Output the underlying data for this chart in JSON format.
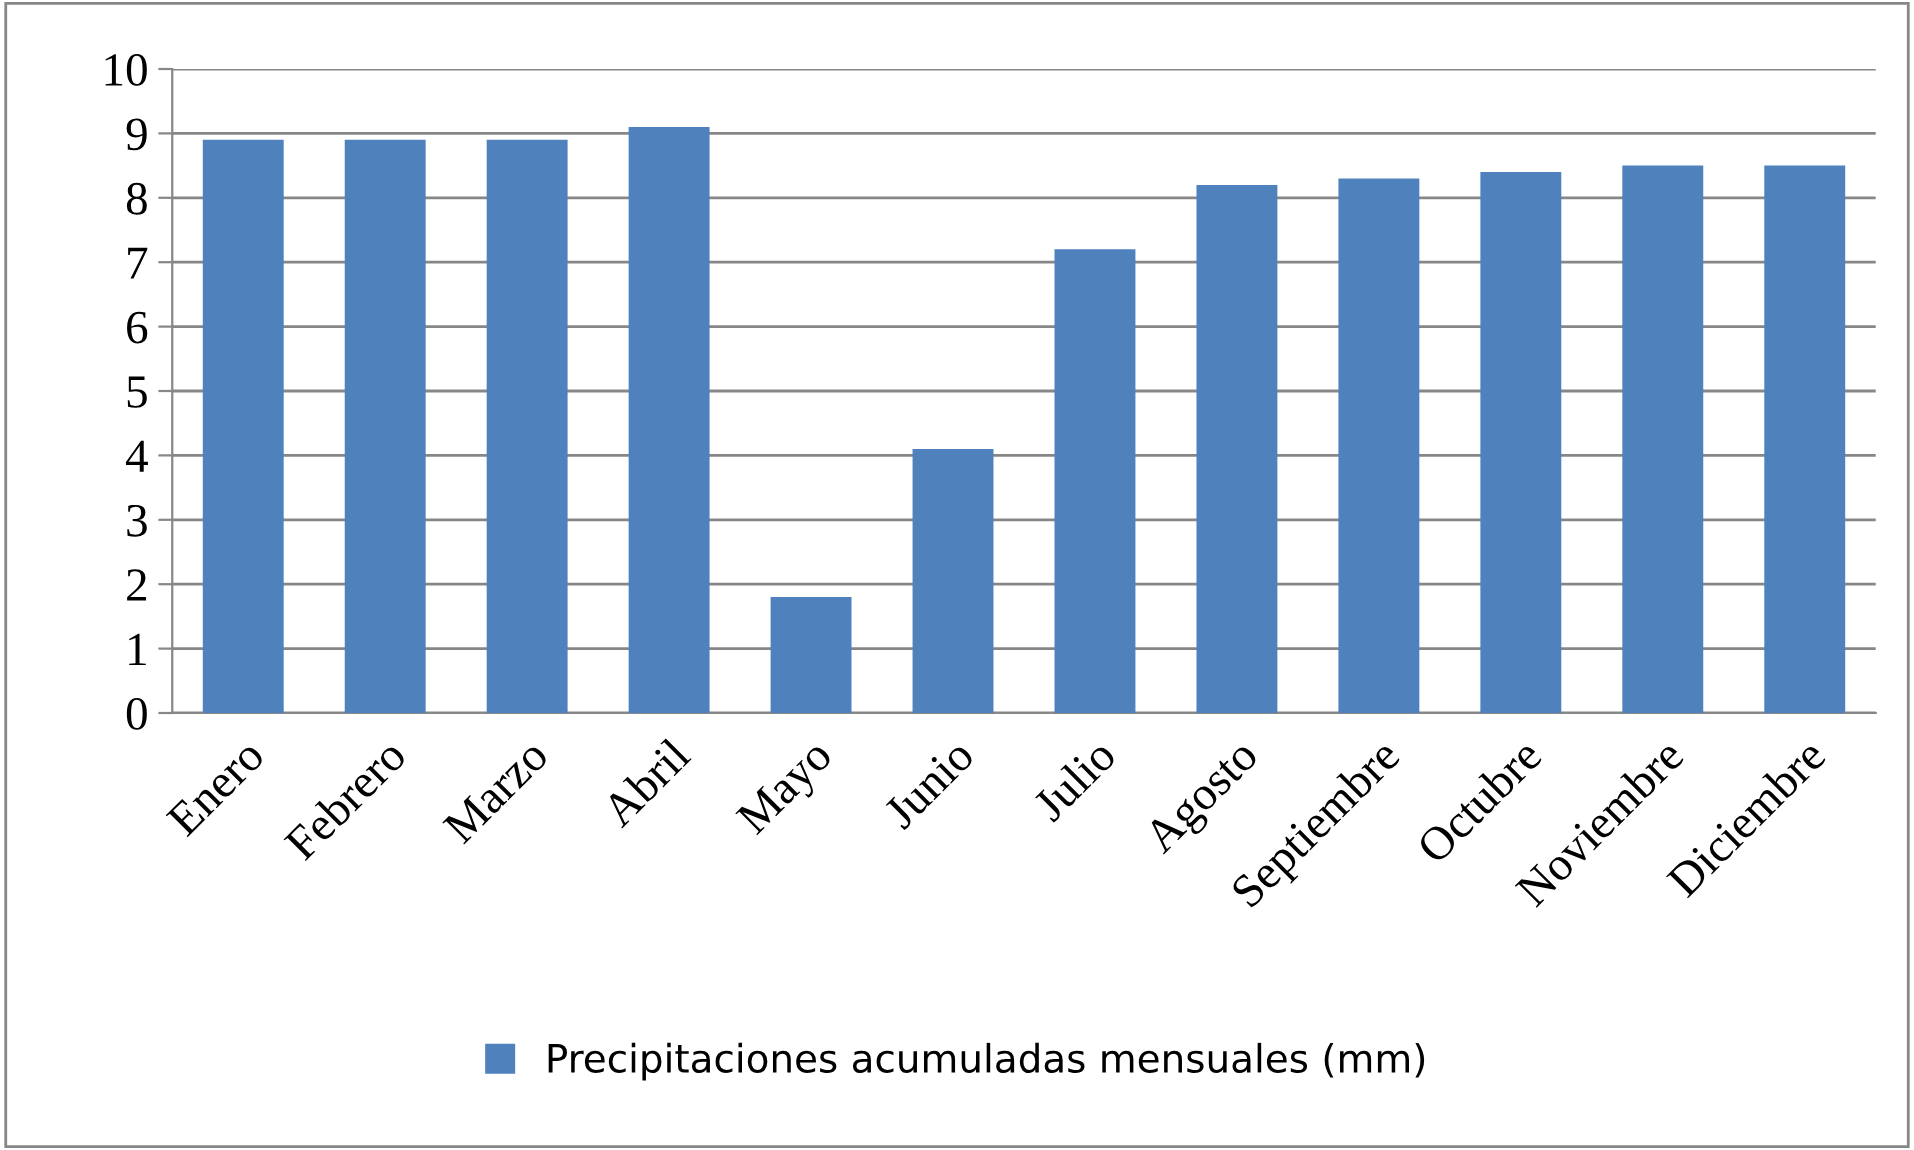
{
  "chart_data": {
    "type": "bar",
    "categories": [
      "Enero",
      "Febrero",
      "Marzo",
      "Abril",
      "Mayo",
      "Junio",
      "Julio",
      "Agosto",
      "Septiembre",
      "Octubre",
      "Noviembre",
      "Diciembre"
    ],
    "series": [
      {
        "name": "Precipitaciones acumuladas mensuales (mm)",
        "color": "#4f81bd",
        "values": [
          8.9,
          8.9,
          8.9,
          9.1,
          1.8,
          4.1,
          7.2,
          8.2,
          8.3,
          8.4,
          8.5,
          8.5
        ]
      }
    ],
    "ylim": [
      0,
      10
    ],
    "yticks": [
      0,
      1,
      2,
      3,
      4,
      5,
      6,
      7,
      8,
      9,
      10
    ],
    "grid": "y",
    "legend": "bottom"
  }
}
